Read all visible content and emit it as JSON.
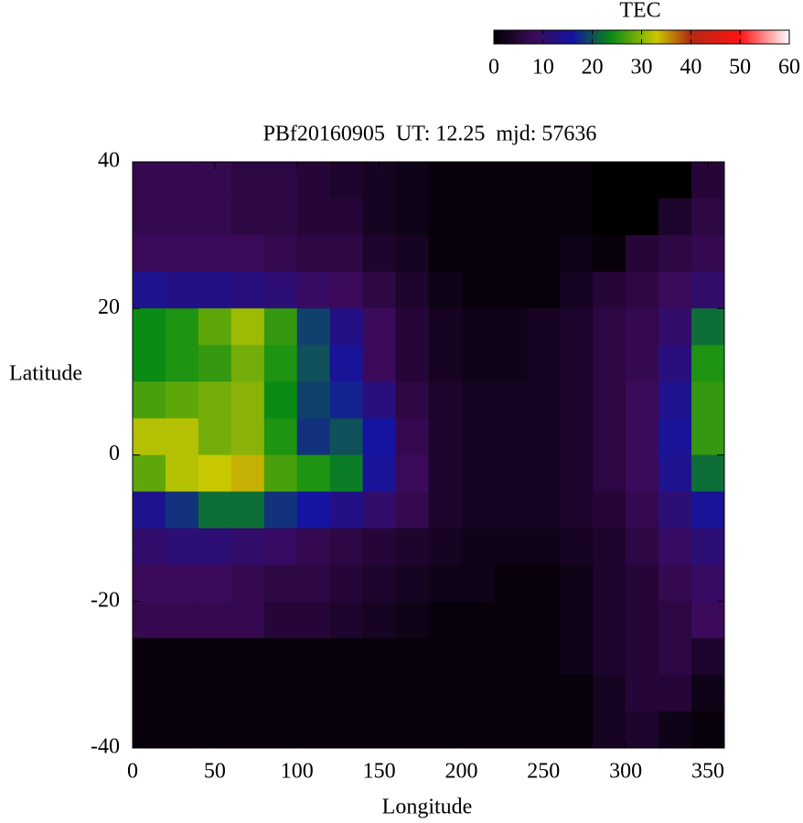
{
  "chart_data": {
    "type": "heatmap",
    "title": "PBf20160905  UT: 12.25  mjd: 57636",
    "xlabel": "Longitude",
    "ylabel": "Latitude",
    "colorbar_title": "TEC",
    "xlim": [
      0,
      360
    ],
    "ylim": [
      -40,
      40
    ],
    "xticks": [
      0,
      50,
      100,
      150,
      200,
      250,
      300,
      350
    ],
    "yticks": [
      -40,
      -20,
      0,
      20,
      40
    ],
    "clim": [
      0,
      60
    ],
    "cticks": [
      0,
      10,
      20,
      30,
      40,
      50,
      60
    ],
    "colorscale": [
      [
        0,
        "#000000"
      ],
      [
        8,
        "#3c0a5a"
      ],
      [
        16,
        "#1414a0"
      ],
      [
        24,
        "#0a8c14"
      ],
      [
        33,
        "#c8c800"
      ],
      [
        40,
        "#b42814"
      ],
      [
        50,
        "#ff1414"
      ],
      [
        60,
        "#ffffff"
      ]
    ],
    "x": [
      10,
      30,
      50,
      70,
      90,
      110,
      130,
      150,
      170,
      190,
      210,
      230,
      250,
      270,
      290,
      310,
      330,
      350
    ],
    "y": [
      37.5,
      32.5,
      27.5,
      22.5,
      17.5,
      12.5,
      7.5,
      2.5,
      -2.5,
      -7.5,
      -12.5,
      -17.5,
      -22.5,
      -27.5,
      -32.5,
      -37.5
    ],
    "values": [
      [
        7,
        7,
        7,
        6,
        6,
        5,
        4,
        3,
        2,
        1,
        1,
        1,
        1,
        1,
        0,
        0,
        0,
        5
      ],
      [
        7,
        7,
        7,
        6,
        6,
        5,
        5,
        3,
        2,
        1,
        1,
        1,
        1,
        1,
        0,
        0,
        4,
        6
      ],
      [
        8,
        8,
        8,
        8,
        7,
        6,
        6,
        4,
        3,
        1,
        1,
        1,
        1,
        2,
        1,
        5,
        6,
        7
      ],
      [
        14,
        13,
        13,
        12,
        11,
        9,
        8,
        6,
        4,
        2,
        1,
        1,
        1,
        3,
        5,
        6,
        8,
        10
      ],
      [
        24,
        25,
        28,
        31,
        26,
        19,
        13,
        8,
        5,
        3,
        2,
        2,
        3,
        4,
        6,
        7,
        10,
        22
      ],
      [
        24,
        25,
        26,
        29,
        25,
        20,
        15,
        8,
        5,
        3,
        2,
        2,
        3,
        4,
        6,
        7,
        12,
        25
      ],
      [
        27,
        28,
        29,
        30,
        24,
        19,
        17,
        12,
        6,
        4,
        3,
        3,
        3,
        4,
        6,
        8,
        14,
        26
      ],
      [
        32,
        32,
        29,
        30,
        25,
        18,
        20,
        16,
        7,
        4,
        3,
        3,
        3,
        4,
        6,
        8,
        15,
        26
      ],
      [
        28,
        32,
        33,
        34,
        27,
        25,
        23,
        15,
        8,
        4,
        3,
        3,
        3,
        4,
        6,
        8,
        14,
        22
      ],
      [
        14,
        18,
        22,
        22,
        18,
        16,
        13,
        10,
        7,
        4,
        3,
        3,
        3,
        4,
        5,
        7,
        11,
        15
      ],
      [
        10,
        11,
        11,
        10,
        9,
        7,
        6,
        5,
        4,
        3,
        2,
        2,
        2,
        3,
        4,
        6,
        9,
        11
      ],
      [
        8,
        8,
        8,
        7,
        6,
        6,
        5,
        4,
        3,
        2,
        2,
        1,
        1,
        2,
        4,
        5,
        7,
        9
      ],
      [
        7,
        7,
        7,
        7,
        5,
        5,
        4,
        3,
        2,
        1,
        1,
        1,
        1,
        2,
        4,
        5,
        6,
        8
      ],
      [
        1,
        1,
        1,
        1,
        1,
        1,
        1,
        1,
        1,
        1,
        1,
        1,
        1,
        2,
        4,
        5,
        6,
        4
      ],
      [
        1,
        1,
        1,
        1,
        1,
        1,
        1,
        1,
        1,
        1,
        1,
        1,
        1,
        1,
        3,
        5,
        5,
        2
      ],
      [
        1,
        1,
        1,
        1,
        1,
        1,
        1,
        1,
        1,
        1,
        1,
        1,
        1,
        1,
        3,
        4,
        2,
        1
      ]
    ]
  }
}
